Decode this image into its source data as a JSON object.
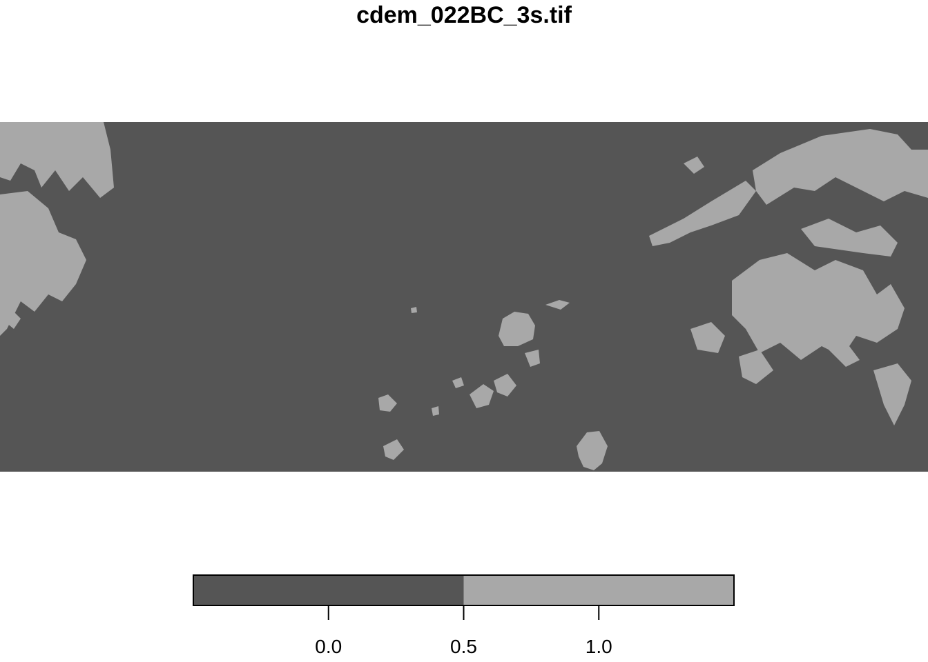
{
  "title": "cdem_022BC_3s.tif",
  "colors": {
    "class_0": "#555555",
    "class_1": "#a8a8a8",
    "background": "#ffffff",
    "axis": "#000000"
  },
  "raster": {
    "classes": [
      {
        "value": 0,
        "color": "#555555"
      },
      {
        "value": 1,
        "color": "#a8a8a8"
      }
    ]
  },
  "legend": {
    "range": [
      -0.5,
      1.5
    ],
    "bins": [
      {
        "from": -0.5,
        "to": 0.5,
        "color": "#555555"
      },
      {
        "from": 0.5,
        "to": 1.5,
        "color": "#a8a8a8"
      }
    ],
    "ticks": [
      {
        "value": 0.0,
        "label": "0.0"
      },
      {
        "value": 0.5,
        "label": "0.5"
      },
      {
        "value": 1.0,
        "label": "1.0"
      }
    ]
  }
}
